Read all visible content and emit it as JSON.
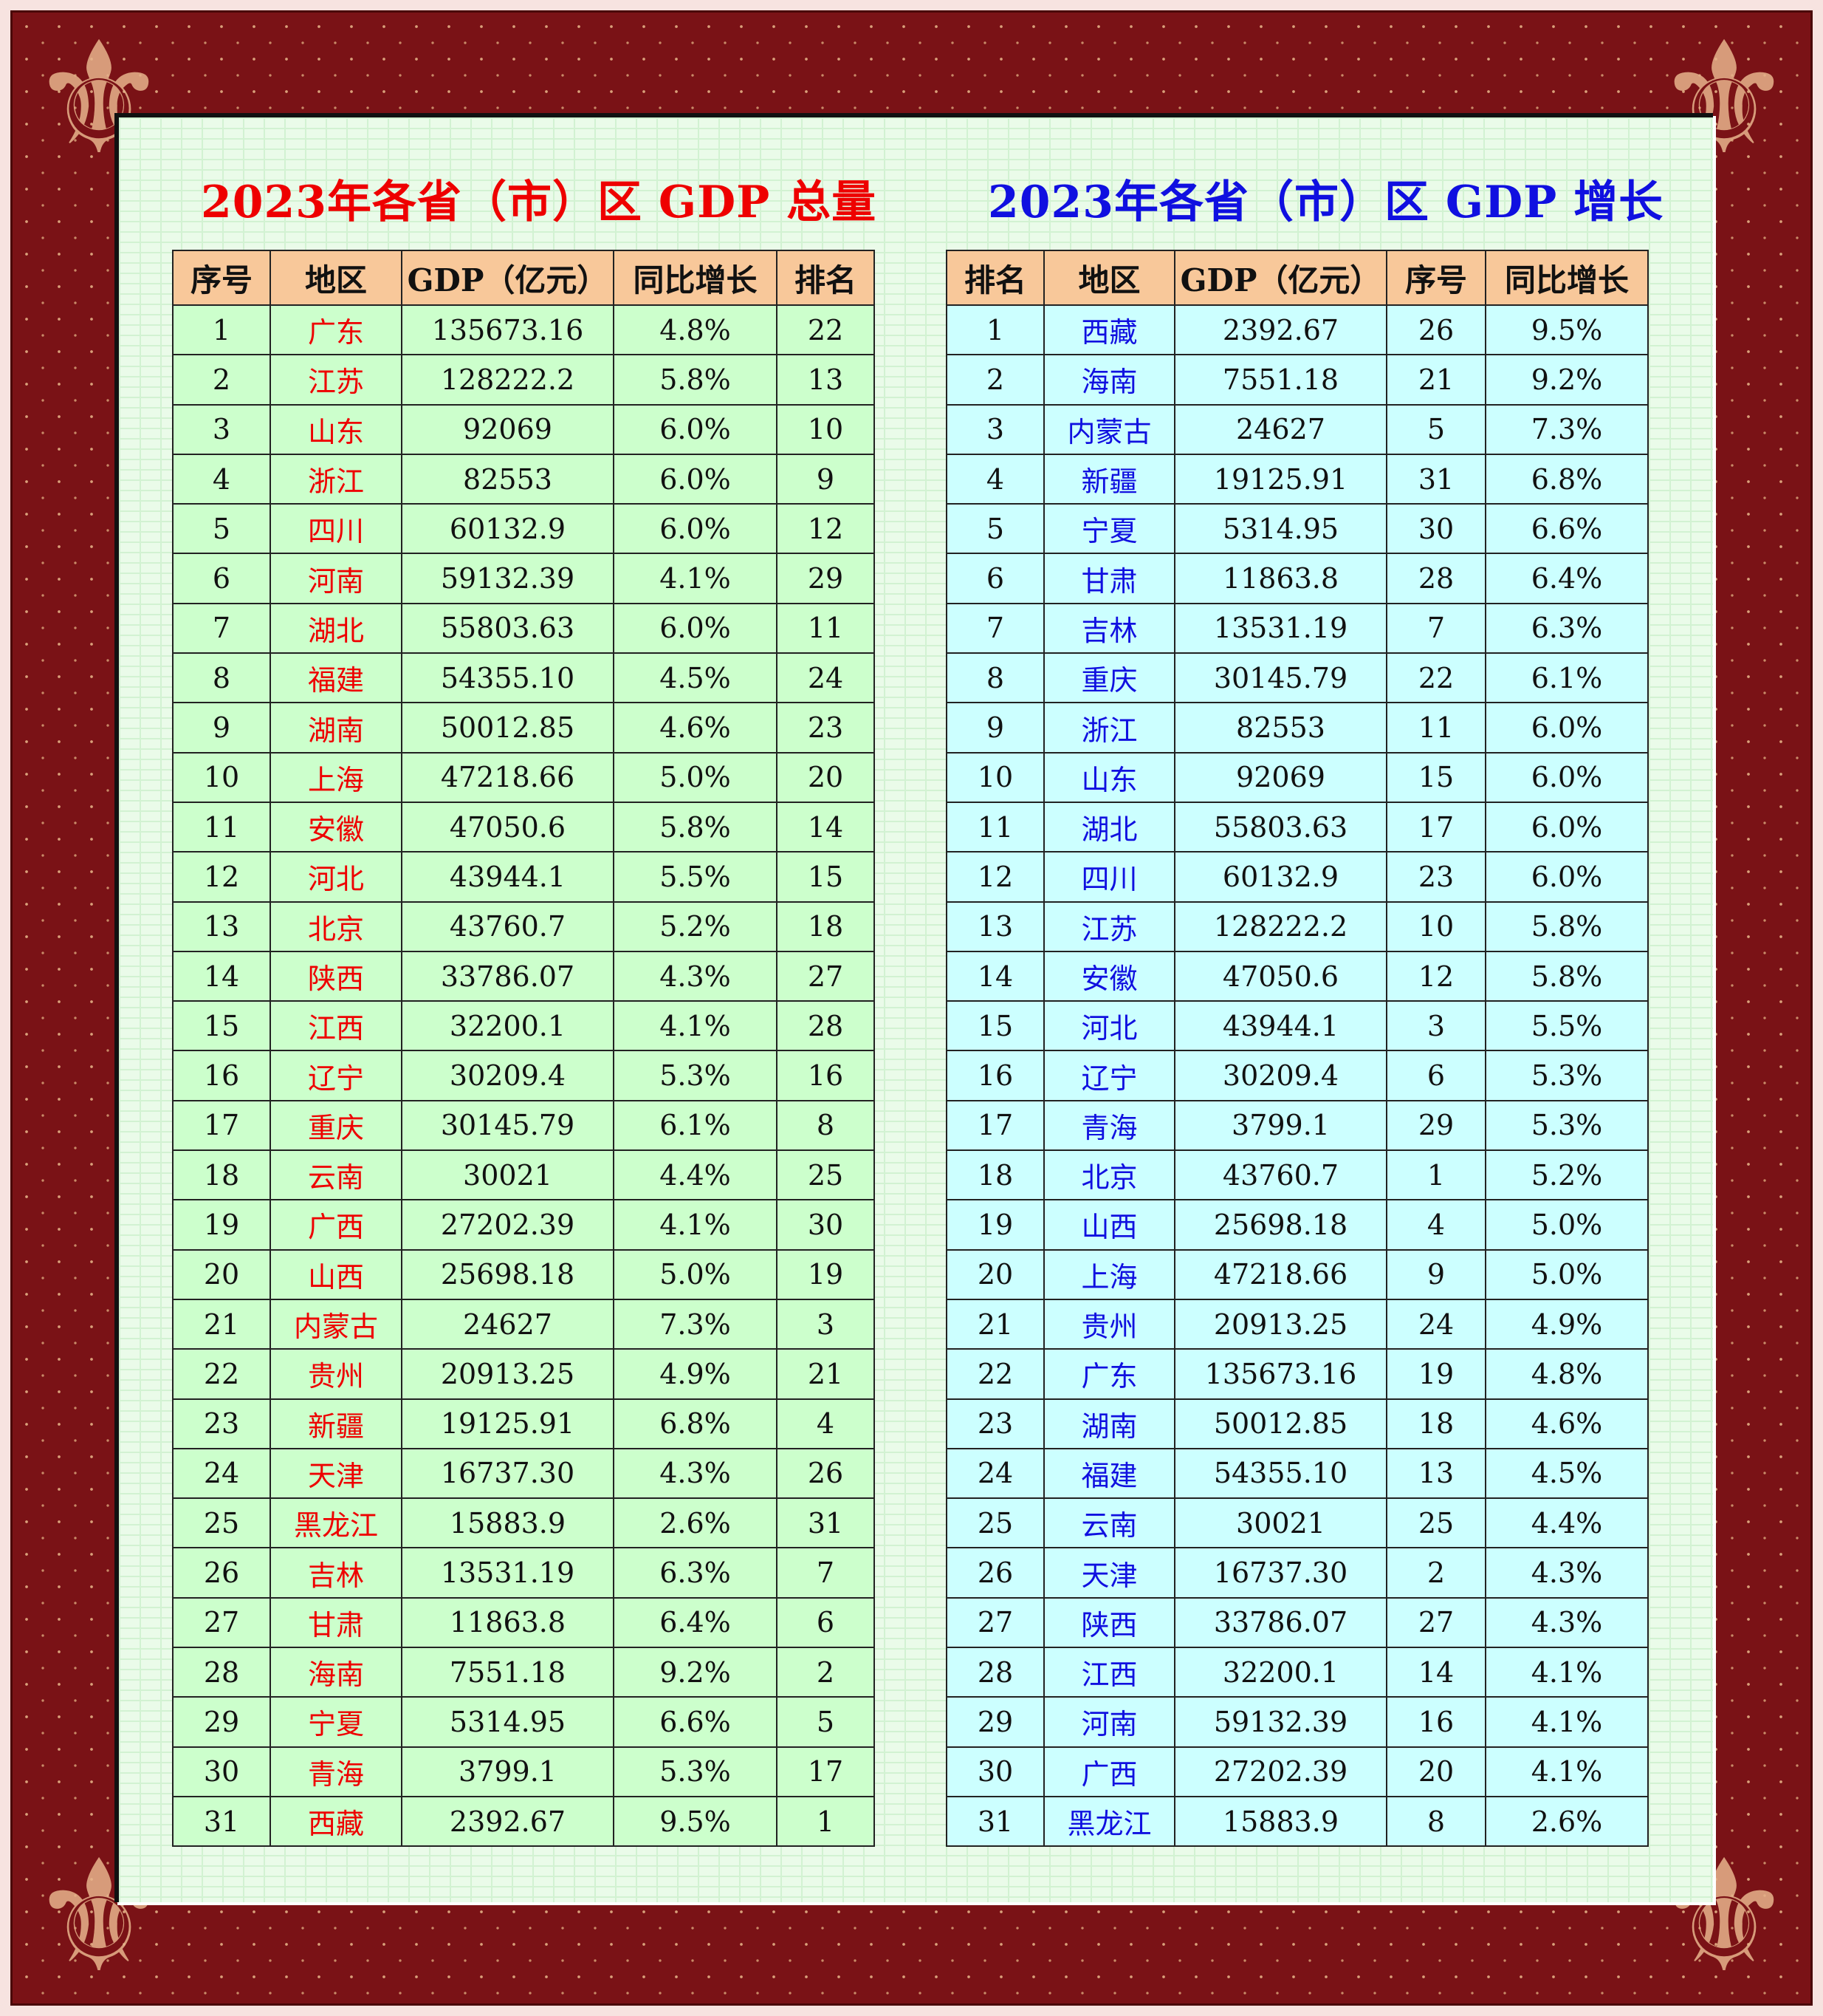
{
  "colors": {
    "left_title": "#ee0000",
    "right_title": "#1010e0",
    "header_bg": "#f8c89a",
    "left_row_bg": "#ccffcc",
    "right_row_bg": "#ccffff",
    "frame": "#7a1216"
  },
  "left": {
    "title": "2023年各省（市）区 GDP 总量",
    "headers": [
      "序号",
      "地区",
      "GDP（亿元）",
      "同比增长",
      "排名"
    ],
    "rows": [
      [
        "1",
        "广东",
        "135673.16",
        "4.8%",
        "22"
      ],
      [
        "2",
        "江苏",
        "128222.2",
        "5.8%",
        "13"
      ],
      [
        "3",
        "山东",
        "92069",
        "6.0%",
        "10"
      ],
      [
        "4",
        "浙江",
        "82553",
        "6.0%",
        "9"
      ],
      [
        "5",
        "四川",
        "60132.9",
        "6.0%",
        "12"
      ],
      [
        "6",
        "河南",
        "59132.39",
        "4.1%",
        "29"
      ],
      [
        "7",
        "湖北",
        "55803.63",
        "6.0%",
        "11"
      ],
      [
        "8",
        "福建",
        "54355.10",
        "4.5%",
        "24"
      ],
      [
        "9",
        "湖南",
        "50012.85",
        "4.6%",
        "23"
      ],
      [
        "10",
        "上海",
        "47218.66",
        "5.0%",
        "20"
      ],
      [
        "11",
        "安徽",
        "47050.6",
        "5.8%",
        "14"
      ],
      [
        "12",
        "河北",
        "43944.1",
        "5.5%",
        "15"
      ],
      [
        "13",
        "北京",
        "43760.7",
        "5.2%",
        "18"
      ],
      [
        "14",
        "陕西",
        "33786.07",
        "4.3%",
        "27"
      ],
      [
        "15",
        "江西",
        "32200.1",
        "4.1%",
        "28"
      ],
      [
        "16",
        "辽宁",
        "30209.4",
        "5.3%",
        "16"
      ],
      [
        "17",
        "重庆",
        "30145.79",
        "6.1%",
        "8"
      ],
      [
        "18",
        "云南",
        "30021",
        "4.4%",
        "25"
      ],
      [
        "19",
        "广西",
        "27202.39",
        "4.1%",
        "30"
      ],
      [
        "20",
        "山西",
        "25698.18",
        "5.0%",
        "19"
      ],
      [
        "21",
        "内蒙古",
        "24627",
        "7.3%",
        "3"
      ],
      [
        "22",
        "贵州",
        "20913.25",
        "4.9%",
        "21"
      ],
      [
        "23",
        "新疆",
        "19125.91",
        "6.8%",
        "4"
      ],
      [
        "24",
        "天津",
        "16737.30",
        "4.3%",
        "26"
      ],
      [
        "25",
        "黑龙江",
        "15883.9",
        "2.6%",
        "31"
      ],
      [
        "26",
        "吉林",
        "13531.19",
        "6.3%",
        "7"
      ],
      [
        "27",
        "甘肃",
        "11863.8",
        "6.4%",
        "6"
      ],
      [
        "28",
        "海南",
        "7551.18",
        "9.2%",
        "2"
      ],
      [
        "29",
        "宁夏",
        "5314.95",
        "6.6%",
        "5"
      ],
      [
        "30",
        "青海",
        "3799.1",
        "5.3%",
        "17"
      ],
      [
        "31",
        "西藏",
        "2392.67",
        "9.5%",
        "1"
      ]
    ]
  },
  "right": {
    "title": "2023年各省（市）区 GDP 增长",
    "headers": [
      "排名",
      "地区",
      "GDP（亿元）",
      "序号",
      "同比增长"
    ],
    "rows": [
      [
        "1",
        "西藏",
        "2392.67",
        "26",
        "9.5%"
      ],
      [
        "2",
        "海南",
        "7551.18",
        "21",
        "9.2%"
      ],
      [
        "3",
        "内蒙古",
        "24627",
        "5",
        "7.3%"
      ],
      [
        "4",
        "新疆",
        "19125.91",
        "31",
        "6.8%"
      ],
      [
        "5",
        "宁夏",
        "5314.95",
        "30",
        "6.6%"
      ],
      [
        "6",
        "甘肃",
        "11863.8",
        "28",
        "6.4%"
      ],
      [
        "7",
        "吉林",
        "13531.19",
        "7",
        "6.3%"
      ],
      [
        "8",
        "重庆",
        "30145.79",
        "22",
        "6.1%"
      ],
      [
        "9",
        "浙江",
        "82553",
        "11",
        "6.0%"
      ],
      [
        "10",
        "山东",
        "92069",
        "15",
        "6.0%"
      ],
      [
        "11",
        "湖北",
        "55803.63",
        "17",
        "6.0%"
      ],
      [
        "12",
        "四川",
        "60132.9",
        "23",
        "6.0%"
      ],
      [
        "13",
        "江苏",
        "128222.2",
        "10",
        "5.8%"
      ],
      [
        "14",
        "安徽",
        "47050.6",
        "12",
        "5.8%"
      ],
      [
        "15",
        "河北",
        "43944.1",
        "3",
        "5.5%"
      ],
      [
        "16",
        "辽宁",
        "30209.4",
        "6",
        "5.3%"
      ],
      [
        "17",
        "青海",
        "3799.1",
        "29",
        "5.3%"
      ],
      [
        "18",
        "北京",
        "43760.7",
        "1",
        "5.2%"
      ],
      [
        "19",
        "山西",
        "25698.18",
        "4",
        "5.0%"
      ],
      [
        "20",
        "上海",
        "47218.66",
        "9",
        "5.0%"
      ],
      [
        "21",
        "贵州",
        "20913.25",
        "24",
        "4.9%"
      ],
      [
        "22",
        "广东",
        "135673.16",
        "19",
        "4.8%"
      ],
      [
        "23",
        "湖南",
        "50012.85",
        "18",
        "4.6%"
      ],
      [
        "24",
        "福建",
        "54355.10",
        "13",
        "4.5%"
      ],
      [
        "25",
        "云南",
        "30021",
        "25",
        "4.4%"
      ],
      [
        "26",
        "天津",
        "16737.30",
        "2",
        "4.3%"
      ],
      [
        "27",
        "陕西",
        "33786.07",
        "27",
        "4.3%"
      ],
      [
        "28",
        "江西",
        "32200.1",
        "14",
        "4.1%"
      ],
      [
        "29",
        "河南",
        "59132.39",
        "16",
        "4.1%"
      ],
      [
        "30",
        "广西",
        "27202.39",
        "20",
        "4.1%"
      ],
      [
        "31",
        "黑龙江",
        "15883.9",
        "8",
        "2.6%"
      ]
    ]
  }
}
